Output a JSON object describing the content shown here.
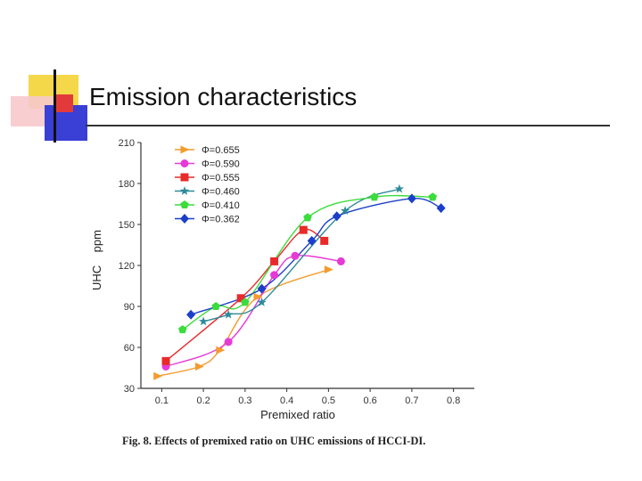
{
  "slide": {
    "title": "Emission characteristics"
  },
  "figure": {
    "caption": "Fig. 8. Effects of premixed ratio on UHC emissions of HCCI-DI."
  },
  "chart_data": {
    "type": "line",
    "xlabel": "Premixed ratio",
    "ylabel": "UHC    ppm",
    "xlim": [
      0.05,
      0.85
    ],
    "ylim": [
      30,
      210
    ],
    "xticks": [
      0.1,
      0.2,
      0.3,
      0.4,
      0.5,
      0.6,
      0.7,
      0.8
    ],
    "yticks": [
      30,
      60,
      90,
      120,
      150,
      180,
      210
    ],
    "xtick_labels": [
      "0.1",
      "0.2",
      "0.3",
      "0.4",
      "0.5",
      "0.6",
      "0.7",
      "0.8"
    ],
    "ytick_labels": [
      "30",
      "60",
      "90",
      "120",
      "150",
      "180",
      "210"
    ],
    "legend_position": "top-left",
    "series": [
      {
        "name": "Φ=0.655",
        "color": "#f39c2e",
        "marker": "triangle-right",
        "points": [
          [
            0.09,
            39
          ],
          [
            0.19,
            46
          ],
          [
            0.24,
            58
          ],
          [
            0.33,
            97
          ],
          [
            0.5,
            117
          ]
        ]
      },
      {
        "name": "Φ=0.590",
        "color": "#e63ad6",
        "marker": "circle",
        "points": [
          [
            0.11,
            46
          ],
          [
            0.26,
            64
          ],
          [
            0.37,
            113
          ],
          [
            0.42,
            127
          ],
          [
            0.53,
            123
          ]
        ]
      },
      {
        "name": "Φ=0.555",
        "color": "#e82a2a",
        "marker": "square",
        "points": [
          [
            0.11,
            50
          ],
          [
            0.29,
            96
          ],
          [
            0.37,
            123
          ],
          [
            0.44,
            146
          ],
          [
            0.49,
            138
          ]
        ]
      },
      {
        "name": "Φ=0.460",
        "color": "#2d8a9a",
        "marker": "star",
        "points": [
          [
            0.2,
            79
          ],
          [
            0.26,
            84
          ],
          [
            0.34,
            93
          ],
          [
            0.54,
            160
          ],
          [
            0.67,
            176
          ]
        ]
      },
      {
        "name": "Φ=0.410",
        "color": "#3bdc3b",
        "marker": "pentagon",
        "points": [
          [
            0.15,
            73
          ],
          [
            0.23,
            90
          ],
          [
            0.3,
            93
          ],
          [
            0.45,
            155
          ],
          [
            0.61,
            170
          ],
          [
            0.75,
            170
          ]
        ]
      },
      {
        "name": "Φ=0.362",
        "color": "#1b3fc9",
        "marker": "diamond",
        "points": [
          [
            0.17,
            84
          ],
          [
            0.34,
            103
          ],
          [
            0.46,
            138
          ],
          [
            0.52,
            156
          ],
          [
            0.7,
            169
          ],
          [
            0.77,
            162
          ]
        ]
      }
    ]
  }
}
